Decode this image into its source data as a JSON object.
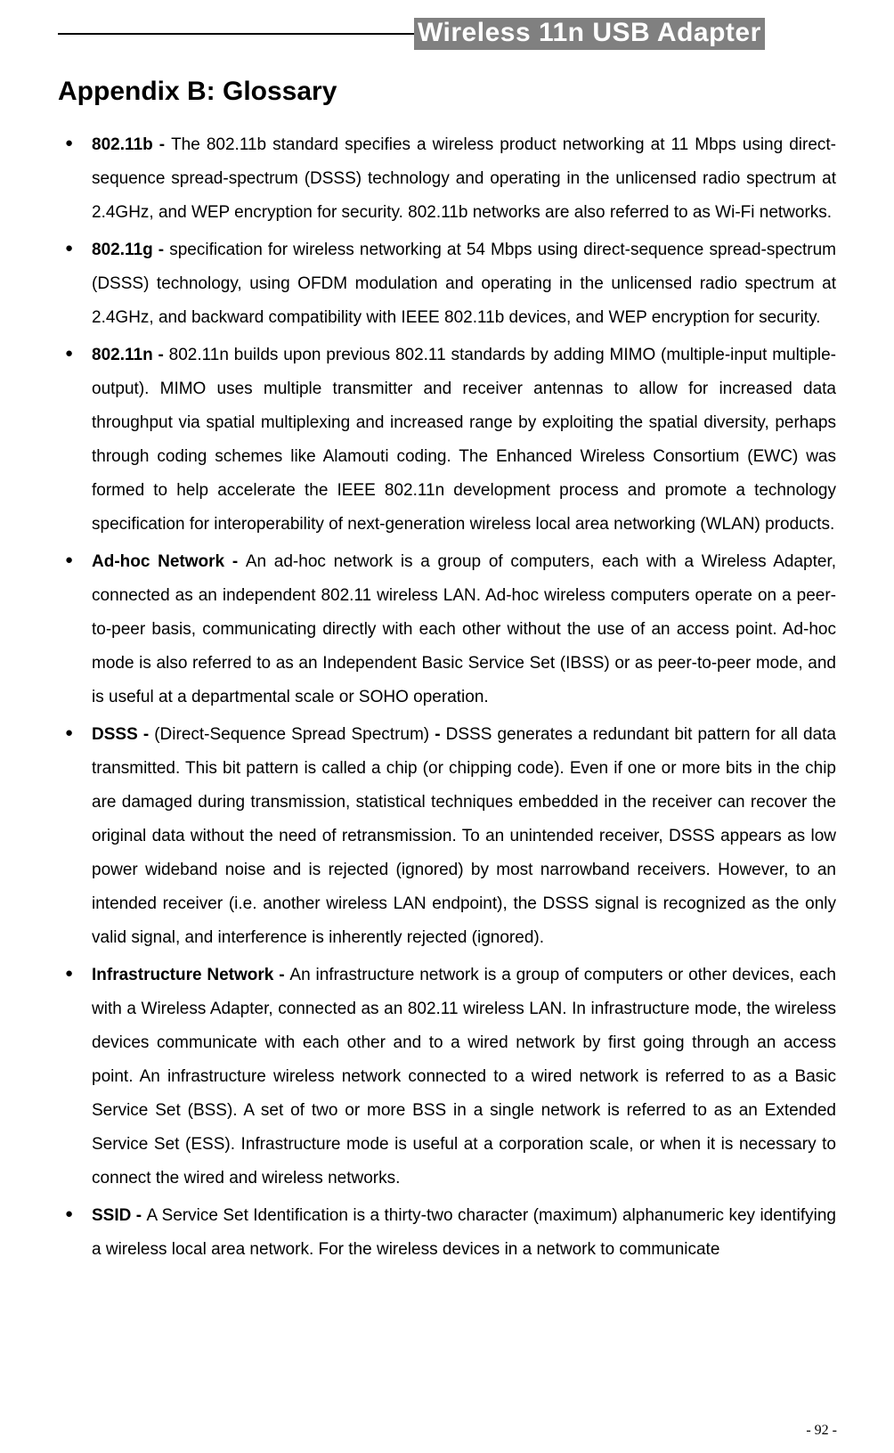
{
  "header": {
    "title": "Wireless 11n USB Adapter",
    "background_color": "#808080",
    "text_color": "#ffffff",
    "font_size": 30
  },
  "appendix": {
    "title": "Appendix B: Glossary",
    "font_size": 30
  },
  "glossary": {
    "items": [
      {
        "term": "802.11b",
        "dash": " - ",
        "definition": "The 802.11b standard specifies a wireless product networking at 11 Mbps using direct-sequence spread-spectrum (DSSS) technology and operating in the unlicensed radio spectrum at 2.4GHz, and WEP encryption for security. 802.11b networks are also referred to as Wi-Fi networks."
      },
      {
        "term": "802.11g",
        "dash": " - ",
        "definition": "specification for wireless networking at 54 Mbps using direct-sequence spread-spectrum (DSSS) technology, using OFDM modulation and operating in the unlicensed radio spectrum at 2.4GHz, and backward compatibility with IEEE 802.11b devices, and WEP encryption for security."
      },
      {
        "term": "802.11n",
        "dash": " - ",
        "definition": "802.11n builds upon previous 802.11 standards by adding MIMO (multiple-input multiple-output). MIMO uses multiple transmitter and receiver antennas to allow for increased data throughput via spatial multiplexing and increased range by exploiting the spatial diversity, perhaps through coding schemes like Alamouti coding. The Enhanced Wireless Consortium (EWC) was formed to help accelerate the IEEE 802.11n development process and promote a technology specification for interoperability of next-generation wireless local area networking (WLAN) products."
      },
      {
        "term": "Ad-hoc Network",
        "dash": " - ",
        "definition": "An ad-hoc network is a group of computers, each with a Wireless Adapter, connected as an independent 802.11 wireless LAN. Ad-hoc wireless computers operate on a peer-to-peer basis, communicating directly with each other without the use of an access point. Ad-hoc mode is also referred to as an Independent Basic Service Set (IBSS) or as peer-to-peer mode, and is useful at a departmental scale or SOHO operation."
      },
      {
        "term": "DSSS",
        "dash": " - ",
        "subnote": "(Direct-Sequence Spread Spectrum)",
        "dash2": " - ",
        "definition": "DSSS generates a redundant bit pattern for all data transmitted. This bit pattern is called a chip (or chipping code). Even if one or more bits in the chip are damaged during transmission, statistical techniques embedded in the receiver can recover the original data without the need of retransmission. To an unintended receiver, DSSS appears as low power wideband noise and is rejected (ignored) by most narrowband receivers. However, to an intended receiver (i.e. another wireless LAN endpoint), the DSSS signal is recognized as the only valid signal, and interference is inherently rejected (ignored)."
      },
      {
        "term": "Infrastructure Network",
        "dash": " - ",
        "definition": "An infrastructure network is a group of computers or other devices, each with a Wireless Adapter, connected as an 802.11 wireless LAN. In infrastructure mode, the wireless devices communicate with each other and to a wired network by first going through an access point. An infrastructure wireless network connected to a wired network is referred to as a Basic Service Set (BSS). A set of two or more BSS in a single network is referred to as an Extended Service Set (ESS). Infrastructure mode is useful at a corporation scale, or when it is necessary to connect the wired and wireless networks."
      },
      {
        "term": "SSID",
        "dash": " - ",
        "definition": "A Service Set Identification is a thirty-two character (maximum) alphanumeric key identifying a wireless local area network. For the wireless devices in a network to communicate"
      }
    ]
  },
  "page_number": "- 92 -",
  "style": {
    "body_font_size": 19,
    "body_line_height": 2.0,
    "text_color": "#000000",
    "background_color": "#ffffff",
    "bullet_char": "●"
  }
}
